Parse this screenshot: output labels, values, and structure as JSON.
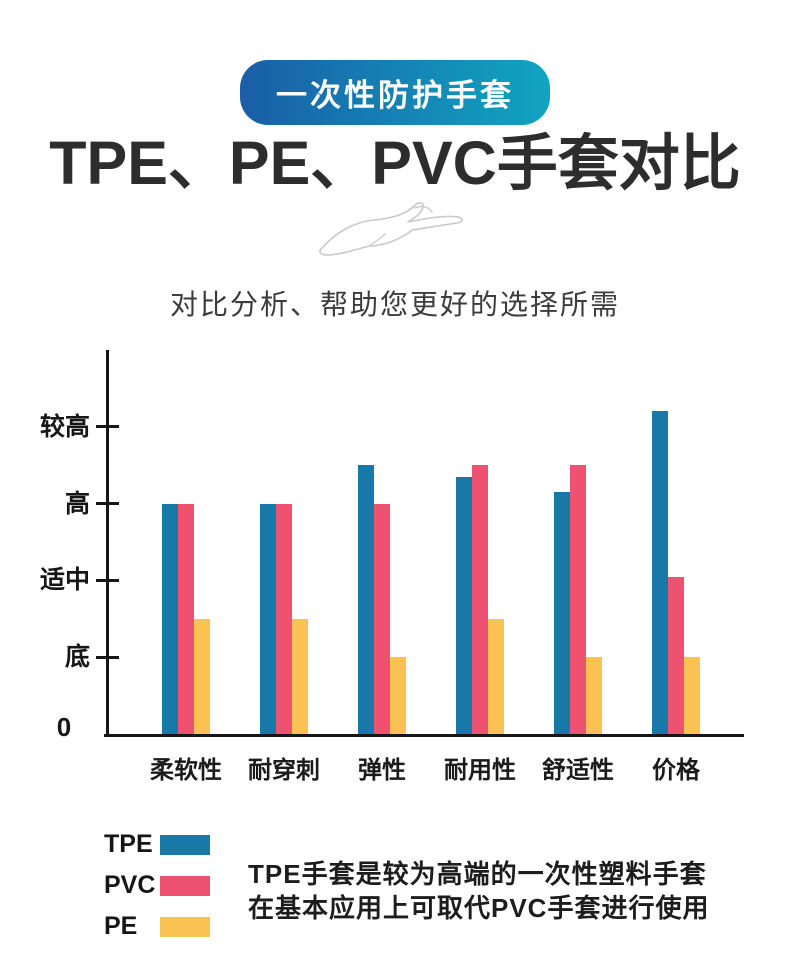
{
  "page": {
    "badge": "一次性防护手套",
    "title": "TPE、PE、PVC手套对比",
    "subtitle": "对比分析、帮助您更好的选择所需"
  },
  "icons": {
    "hand": "hand-line-sketch"
  },
  "colors": {
    "badge_gradient_start": "#1a5ea7",
    "badge_gradient_end": "#10a5c1",
    "axis": "#161616",
    "tpe": "#1878a8",
    "pvc": "#ef5170",
    "pe": "#fac253"
  },
  "chart_data": {
    "type": "bar",
    "title": "",
    "categories": [
      "柔软性",
      "耐穿刺",
      "弹性",
      "耐用性",
      "舒适性",
      "价格"
    ],
    "series": [
      {
        "name": "TPE",
        "color": "#1878a8",
        "values": [
          3.0,
          3.0,
          3.5,
          3.35,
          3.15,
          4.2
        ]
      },
      {
        "name": "PVC",
        "color": "#ef5170",
        "values": [
          3.0,
          3.0,
          3.0,
          3.5,
          3.5,
          2.05
        ]
      },
      {
        "name": "PE",
        "color": "#fac253",
        "values": [
          1.5,
          1.5,
          1.0,
          1.5,
          1.0,
          1.0
        ]
      }
    ],
    "y_ticks": [
      {
        "value": 1,
        "label": "底"
      },
      {
        "value": 2,
        "label": "适中"
      },
      {
        "value": 3,
        "label": "高"
      },
      {
        "value": 4,
        "label": "较高"
      }
    ],
    "origin_label": "0",
    "ylim": [
      0,
      5
    ],
    "xlabel": "",
    "ylabel": "",
    "grid": false,
    "legend_position": "bottom-left",
    "legend": [
      "TPE",
      "PVC",
      "PE"
    ]
  },
  "description": {
    "line1": "TPE手套是较为高端的一次性塑料手套",
    "line2": "在基本应用上可取代PVC手套进行使用"
  }
}
